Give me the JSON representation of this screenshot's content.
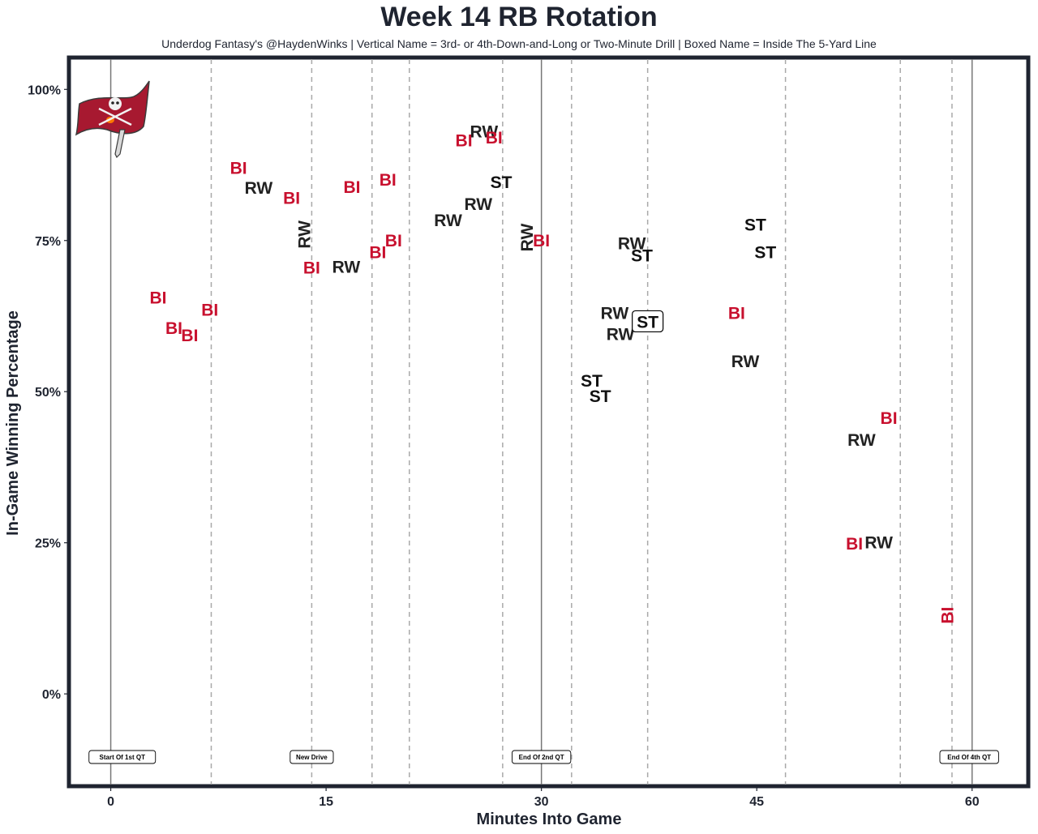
{
  "title": "Week 14 RB Rotation",
  "subtitle": "Underdog Fantasy's @HaydenWinks | Vertical Name = 3rd- or 4th-Down-and-Long or Two-Minute Drill | Boxed Name = Inside The 5-Yard Line",
  "logo_icon": "buccaneers-flag-logo",
  "colors": {
    "BI": "#c8102e",
    "RW": "#222222",
    "ST": "#111111",
    "frame": "#1f2430",
    "dashed": "#a9a9a9",
    "solid": "#777777"
  },
  "chart_data": {
    "type": "scatter",
    "title": "Week 14 RB Rotation",
    "xlabel": "Minutes Into Game",
    "ylabel": "In-Game Winning Percentage",
    "xlim": [
      -2.8,
      63.8
    ],
    "ylim": [
      -15,
      105
    ],
    "x_ticks": [
      0,
      15,
      30,
      45,
      60
    ],
    "x_tick_labels": [
      "0",
      "15",
      "30",
      "45",
      "60"
    ],
    "y_ticks": [
      0,
      25,
      50,
      75,
      100
    ],
    "y_tick_labels": [
      "0%",
      "25%",
      "50%",
      "75%",
      "100%"
    ],
    "grid": false,
    "solid_lines": [
      0,
      30,
      60
    ],
    "drive_lines": [
      7.0,
      14.0,
      18.2,
      20.8,
      27.3,
      32.1,
      37.4,
      47.0,
      55.0,
      58.6
    ],
    "annotations": [
      {
        "x": 0.8,
        "text": "Start Of 1st QT"
      },
      {
        "x": 14.0,
        "text": "New Drive"
      },
      {
        "x": 30.0,
        "text": "End Of 2nd QT"
      },
      {
        "x": 59.8,
        "text": "End Of 4th QT"
      }
    ],
    "points": [
      {
        "label": "BI",
        "x": 3.3,
        "y": 65.5,
        "vertical": false,
        "boxed": false
      },
      {
        "label": "BI",
        "x": 4.4,
        "y": 60.5,
        "vertical": false,
        "boxed": false
      },
      {
        "label": "BI",
        "x": 5.5,
        "y": 59.3,
        "vertical": false,
        "boxed": false
      },
      {
        "label": "BI",
        "x": 6.9,
        "y": 63.5,
        "vertical": false,
        "boxed": false
      },
      {
        "label": "BI",
        "x": 8.9,
        "y": 87.0,
        "vertical": false,
        "boxed": false
      },
      {
        "label": "RW",
        "x": 10.3,
        "y": 83.7,
        "vertical": false,
        "boxed": false
      },
      {
        "label": "BI",
        "x": 12.6,
        "y": 82.0,
        "vertical": false,
        "boxed": false
      },
      {
        "label": "RW",
        "x": 13.5,
        "y": 76.0,
        "vertical": true,
        "boxed": false
      },
      {
        "label": "BI",
        "x": 14.0,
        "y": 70.5,
        "vertical": false,
        "boxed": false
      },
      {
        "label": "RW",
        "x": 16.4,
        "y": 70.6,
        "vertical": false,
        "boxed": false
      },
      {
        "label": "BI",
        "x": 16.8,
        "y": 83.8,
        "vertical": false,
        "boxed": false
      },
      {
        "label": "BI",
        "x": 18.6,
        "y": 73.0,
        "vertical": false,
        "boxed": false
      },
      {
        "label": "BI",
        "x": 19.3,
        "y": 85.0,
        "vertical": false,
        "boxed": false
      },
      {
        "label": "BI",
        "x": 19.7,
        "y": 75.0,
        "vertical": false,
        "boxed": false
      },
      {
        "label": "RW",
        "x": 23.5,
        "y": 78.3,
        "vertical": false,
        "boxed": false
      },
      {
        "label": "BI",
        "x": 24.6,
        "y": 91.5,
        "vertical": false,
        "boxed": false
      },
      {
        "label": "RW",
        "x": 25.6,
        "y": 81.0,
        "vertical": false,
        "boxed": false
      },
      {
        "label": "RW",
        "x": 26.0,
        "y": 93.0,
        "vertical": false,
        "boxed": false
      },
      {
        "label": "BI",
        "x": 26.7,
        "y": 92.0,
        "vertical": false,
        "boxed": false
      },
      {
        "label": "ST",
        "x": 27.2,
        "y": 84.6,
        "vertical": false,
        "boxed": false
      },
      {
        "label": "RW",
        "x": 29.0,
        "y": 75.5,
        "vertical": true,
        "boxed": false
      },
      {
        "label": "BI",
        "x": 30.0,
        "y": 75.0,
        "vertical": false,
        "boxed": false
      },
      {
        "label": "ST",
        "x": 33.5,
        "y": 51.8,
        "vertical": false,
        "boxed": false
      },
      {
        "label": "ST",
        "x": 34.1,
        "y": 49.2,
        "vertical": false,
        "boxed": false
      },
      {
        "label": "RW",
        "x": 35.1,
        "y": 63.0,
        "vertical": false,
        "boxed": false
      },
      {
        "label": "RW",
        "x": 35.5,
        "y": 59.5,
        "vertical": false,
        "boxed": false
      },
      {
        "label": "RW",
        "x": 36.3,
        "y": 74.5,
        "vertical": false,
        "boxed": false
      },
      {
        "label": "ST",
        "x": 37.0,
        "y": 72.5,
        "vertical": false,
        "boxed": false
      },
      {
        "label": "ST",
        "x": 37.4,
        "y": 61.5,
        "vertical": false,
        "boxed": true
      },
      {
        "label": "BI",
        "x": 43.6,
        "y": 63.0,
        "vertical": false,
        "boxed": false
      },
      {
        "label": "RW",
        "x": 44.2,
        "y": 55.0,
        "vertical": false,
        "boxed": false
      },
      {
        "label": "ST",
        "x": 44.9,
        "y": 77.6,
        "vertical": false,
        "boxed": false
      },
      {
        "label": "ST",
        "x": 45.6,
        "y": 73.0,
        "vertical": false,
        "boxed": false
      },
      {
        "label": "BI",
        "x": 54.2,
        "y": 45.6,
        "vertical": false,
        "boxed": false
      },
      {
        "label": "RW",
        "x": 52.3,
        "y": 42.0,
        "vertical": false,
        "boxed": false
      },
      {
        "label": "BI",
        "x": 51.8,
        "y": 24.8,
        "vertical": false,
        "boxed": false
      },
      {
        "label": "RW",
        "x": 53.5,
        "y": 25.0,
        "vertical": false,
        "boxed": false
      },
      {
        "label": "BI",
        "x": 58.3,
        "y": 13.0,
        "vertical": true,
        "boxed": false
      }
    ]
  }
}
